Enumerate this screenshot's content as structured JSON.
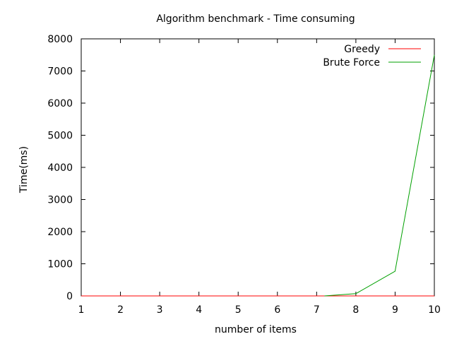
{
  "chart_data": {
    "type": "line",
    "title": "Algorithm benchmark - Time consuming",
    "xlabel": "number of items",
    "ylabel": "Time(ms)",
    "xlim": [
      1,
      10
    ],
    "ylim": [
      0,
      8000
    ],
    "xticks": [
      "1",
      "2",
      "3",
      "4",
      "5",
      "6",
      "7",
      "8",
      "9",
      "10"
    ],
    "yticks": [
      "0",
      "1000",
      "2000",
      "3000",
      "4000",
      "5000",
      "6000",
      "7000",
      "8000"
    ],
    "grid": false,
    "legend_position": "top-right",
    "series": [
      {
        "name": "Greedy",
        "color": "#ff0000",
        "x": [
          1,
          2,
          3,
          4,
          5,
          6,
          7,
          8,
          9,
          10
        ],
        "y": [
          0,
          0,
          0,
          0,
          0,
          0,
          0,
          0,
          0,
          0
        ]
      },
      {
        "name": "Brute Force",
        "color": "#00a000",
        "x": [
          7.2,
          8,
          9,
          10
        ],
        "y": [
          0,
          70,
          770,
          7500
        ]
      }
    ]
  }
}
